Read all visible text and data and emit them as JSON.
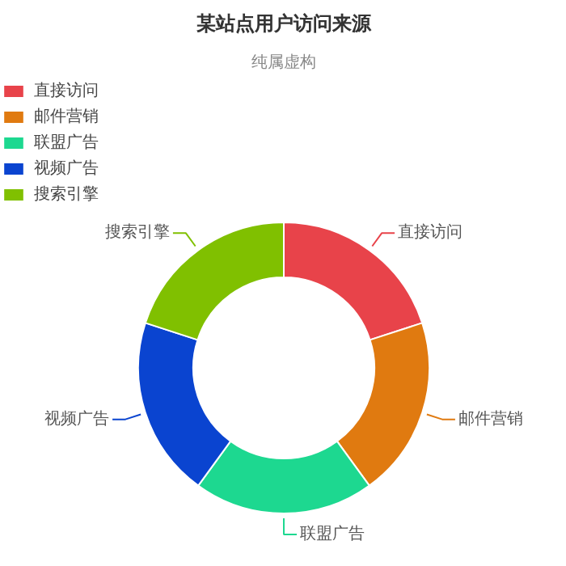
{
  "chart_data": {
    "type": "donut",
    "title": "某站点用户访问来源",
    "subtitle": "纯属虚构",
    "categories": [
      "直接访问",
      "邮件营销",
      "联盟广告",
      "视频广告",
      "搜索引擎"
    ],
    "values": [
      20,
      20,
      20,
      20,
      20
    ],
    "colors": [
      "#e8434a",
      "#e07a10",
      "#1dd890",
      "#0a44d0",
      "#80c000"
    ],
    "legend": "top left"
  }
}
